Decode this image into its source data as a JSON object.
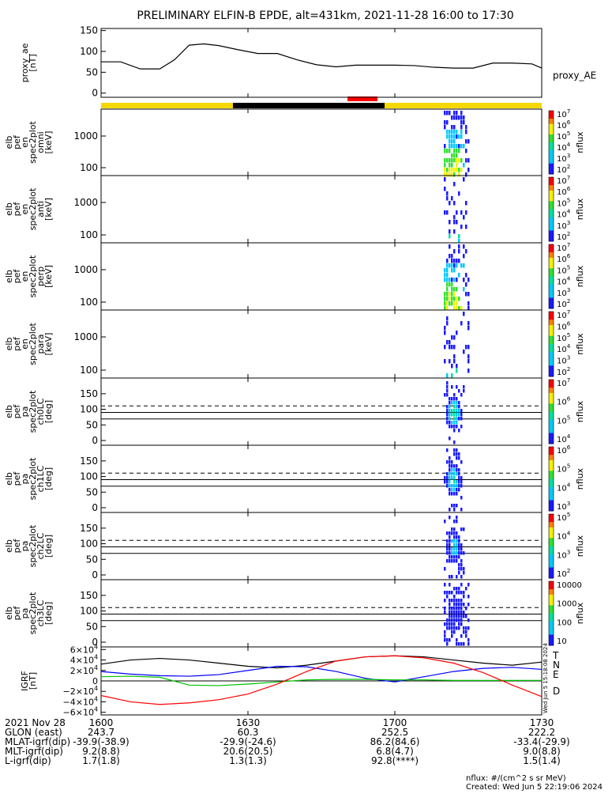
{
  "title": "PRELIMINARY ELFIN-B EPDE, alt=431km, 2021-11-28 16:00 to 17:30",
  "colors": {
    "sunlight_bar": "#f5d800",
    "shadow_bar": "#000000",
    "science_zone": "#ff0000",
    "igrf_T": "#000000",
    "igrf_N": "#0000ff",
    "igrf_E": "#00c000",
    "igrf_D": "#ff0000"
  },
  "chart_data": [
    {
      "type": "line",
      "id": "proxy_ae",
      "ylabel": [
        "proxy_ae",
        "[nT]"
      ],
      "legend": [
        "proxy_AE"
      ],
      "ylim": [
        -10,
        155
      ],
      "yticks": [
        "150",
        "100",
        "50",
        "0"
      ],
      "x_minutes": [
        0,
        4,
        8,
        12,
        15,
        18,
        21,
        24,
        28,
        32,
        36,
        40,
        44,
        48,
        52,
        56,
        60,
        64,
        68,
        72,
        76,
        80,
        84,
        88,
        90
      ],
      "values": [
        75,
        75,
        58,
        58,
        80,
        115,
        118,
        114,
        104,
        95,
        95,
        80,
        68,
        63,
        67,
        67,
        67,
        66,
        62,
        60,
        60,
        72,
        72,
        70,
        60
      ]
    },
    {
      "type": "heatmap",
      "id": "spec_omni",
      "ylabel": [
        "elb",
        "pef",
        "en",
        "spec2plot",
        "omni",
        "[keV]"
      ],
      "colorbar_label": "nflux",
      "colorbar_ticks": [
        "10^7",
        "10^6",
        "10^5",
        "10^4",
        "10^3",
        "10^2"
      ],
      "yticks": [
        "1000",
        "100"
      ],
      "active_minutes": [
        70,
        75
      ]
    },
    {
      "type": "heatmap",
      "id": "spec_anti",
      "ylabel": [
        "elb",
        "pef",
        "en",
        "spec2plot",
        "anti",
        "[keV]"
      ],
      "colorbar_label": "nflux",
      "colorbar_ticks": [
        "10^7",
        "10^6",
        "10^5",
        "10^4",
        "10^3",
        "10^2"
      ],
      "yticks": [
        "1000",
        "100"
      ],
      "active_minutes": [
        70,
        75
      ]
    },
    {
      "type": "heatmap",
      "id": "spec_perp",
      "ylabel": [
        "elb",
        "pef",
        "en",
        "spec2plot",
        "perp",
        "[keV]"
      ],
      "colorbar_label": "nflux",
      "colorbar_ticks": [
        "10^7",
        "10^6",
        "10^5",
        "10^4",
        "10^3",
        "10^2"
      ],
      "yticks": [
        "1000",
        "100"
      ],
      "active_minutes": [
        70,
        75
      ]
    },
    {
      "type": "heatmap",
      "id": "spec_para",
      "ylabel": [
        "elb",
        "pef",
        "en",
        "spec2plot",
        "para",
        "[keV]"
      ],
      "colorbar_label": "nflux",
      "colorbar_ticks": [
        "10^7",
        "10^6",
        "10^5",
        "10^4",
        "10^3",
        "10^2"
      ],
      "yticks": [
        "1000",
        "100"
      ],
      "active_minutes": [
        70,
        75
      ]
    },
    {
      "type": "heatmap",
      "id": "pa_ch0",
      "ylabel": [
        "elb",
        "pef",
        "pa",
        "spec2plot",
        "ch0LC",
        "[deg]"
      ],
      "colorbar_label": "nflux",
      "colorbar_ticks": [
        "10^7",
        "10^6",
        "10^5",
        "10^4"
      ],
      "yticks": [
        "150",
        "100",
        "50",
        "0"
      ],
      "ylim": [
        0,
        180
      ],
      "lines_deg": [
        111,
        90,
        69
      ],
      "active_minutes": [
        70,
        74
      ]
    },
    {
      "type": "heatmap",
      "id": "pa_ch1",
      "ylabel": [
        "elb",
        "pef",
        "pa",
        "spec2plot",
        "ch1LC",
        "[deg]"
      ],
      "colorbar_label": "nflux",
      "colorbar_ticks": [
        "10^6",
        "10^5",
        "10^4",
        "10^3"
      ],
      "yticks": [
        "150",
        "100",
        "50",
        "0"
      ],
      "ylim": [
        0,
        180
      ],
      "lines_deg": [
        111,
        90,
        69
      ],
      "active_minutes": [
        70,
        74
      ]
    },
    {
      "type": "heatmap",
      "id": "pa_ch2",
      "ylabel": [
        "elb",
        "pef",
        "pa",
        "spec2plot",
        "ch2LC",
        "[deg]"
      ],
      "colorbar_label": "nflux",
      "colorbar_ticks": [
        "10^5",
        "10^4",
        "10^3",
        "10^2"
      ],
      "yticks": [
        "150",
        "100",
        "50",
        "0"
      ],
      "ylim": [
        0,
        180
      ],
      "lines_deg": [
        111,
        90,
        69
      ],
      "active_minutes": [
        70,
        74
      ]
    },
    {
      "type": "heatmap",
      "id": "pa_ch3",
      "ylabel": [
        "elb",
        "pef",
        "pa",
        "spec2plot",
        "ch3LC",
        "[deg]"
      ],
      "colorbar_label": "nflux",
      "colorbar_ticks": [
        "10000",
        "1000",
        "100",
        "10"
      ],
      "yticks": [
        "150",
        "100",
        "50",
        "0"
      ],
      "ylim": [
        0,
        180
      ],
      "lines_deg": [
        111,
        90,
        69
      ],
      "active_minutes": [
        70,
        75
      ]
    },
    {
      "type": "line",
      "id": "igrf",
      "ylabel": [
        "IGRF",
        "[nT]"
      ],
      "ylim": [
        -65000,
        65000
      ],
      "yticks": [
        "6×10^4",
        "4×10^4",
        "2×10^4",
        "0",
        "−2×10^4",
        "−4×10^4",
        "−6×10^4"
      ],
      "legend": [
        "T",
        "N",
        "E",
        "D"
      ],
      "side_stamp": "Wed Jun  5 15:18:08 2024",
      "x_minutes": [
        0,
        6,
        12,
        18,
        24,
        30,
        36,
        42,
        48,
        54,
        60,
        66,
        72,
        78,
        84,
        90
      ],
      "series": [
        {
          "name": "T",
          "values": [
            32000,
            40000,
            43000,
            40000,
            34000,
            28000,
            25000,
            30000,
            38000,
            46000,
            48000,
            46000,
            40000,
            34000,
            30000,
            36000
          ]
        },
        {
          "name": "N",
          "values": [
            18000,
            13000,
            10000,
            9000,
            12000,
            20000,
            28000,
            27000,
            18000,
            5000,
            -2000,
            8000,
            18000,
            24000,
            26000,
            22000
          ]
        },
        {
          "name": "E",
          "values": [
            8000,
            9000,
            7000,
            -8000,
            -9000,
            -6000,
            -2000,
            2000,
            3000,
            3000,
            2000,
            2000,
            1000,
            1000,
            1000,
            1000
          ]
        },
        {
          "name": "D",
          "values": [
            -28000,
            -40000,
            -45000,
            -42000,
            -36000,
            -25000,
            -6000,
            18000,
            38000,
            46000,
            48000,
            44000,
            34000,
            16000,
            -8000,
            -30000
          ]
        }
      ]
    }
  ],
  "xaxis": {
    "ticks": [
      {
        "minute": 0,
        "label": "1600"
      },
      {
        "minute": 30,
        "label": "1630"
      },
      {
        "minute": 60,
        "label": "1700"
      },
      {
        "minute": 90,
        "label": "1730"
      }
    ],
    "rows": [
      {
        "label": "2021 Nov 28",
        "values": [
          "1600",
          "1630",
          "1700",
          "1730"
        ]
      },
      {
        "label": "GLON (east)",
        "values": [
          "243.7",
          "60.3",
          "252.5",
          "222.2"
        ]
      },
      {
        "label": "MLAT-igrf(dip)",
        "values": [
          "-39.9(-38.9)",
          "-29.9(-24.6)",
          "86.2(84.6)",
          "-33.4(-29.9)"
        ]
      },
      {
        "label": "MLT-igrf(dip)",
        "values": [
          "9.2(8.8)",
          "20.6(20.5)",
          "6.8(4.7)",
          "9.0(8.8)"
        ]
      },
      {
        "label": "L-igrf(dip)",
        "values": [
          "1.7(1.8)",
          "1.3(1.3)",
          "92.8(****)",
          "1.5(1.4)"
        ]
      }
    ]
  },
  "footer": {
    "units": "nflux: #/(cm^2 s sr MeV)",
    "created": "Created: Wed Jun  5 22:19:06 2024"
  }
}
